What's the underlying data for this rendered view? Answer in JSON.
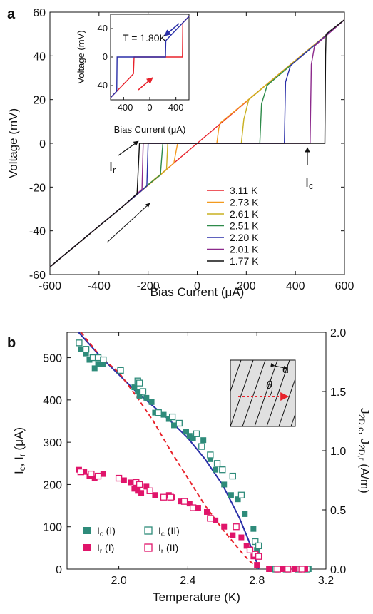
{
  "figure": {
    "panel_a_label": "a",
    "panel_b_label": "b"
  },
  "chart_data": [
    {
      "panel": "a",
      "type": "line",
      "xlabel": "Bias Current (μA)",
      "ylabel": "Voltage (mV)",
      "xlim": [
        -600,
        600
      ],
      "ylim": [
        -60,
        60
      ],
      "xticks": [
        -600,
        -400,
        -200,
        0,
        200,
        400,
        600
      ],
      "yticks": [
        -60,
        -40,
        -20,
        0,
        20,
        40,
        60
      ],
      "legend_position": "lower-right",
      "series": [
        {
          "name": "3.11 K",
          "color": "#e8222b",
          "x": [
            -600,
            -310,
            0,
            310,
            600
          ],
          "y": [
            -56.5,
            -29.5,
            0,
            29.5,
            56.5
          ]
        },
        {
          "name": "2.73 K",
          "color": "#f39a1f",
          "x": [
            -600,
            -310,
            -150,
            -95,
            -80,
            0,
            80,
            88,
            95,
            150,
            310,
            600
          ],
          "y": [
            -56.5,
            -29.5,
            -14.5,
            -9,
            0,
            0,
            0,
            7,
            9.5,
            14.5,
            29.5,
            56.5
          ]
        },
        {
          "name": "2.61 K",
          "color": "#c9b020",
          "x": [
            -600,
            -310,
            -170,
            -125,
            -120,
            0,
            180,
            190,
            210,
            600
          ],
          "y": [
            -56.5,
            -29.5,
            -16,
            -12,
            0,
            0,
            0,
            11,
            20,
            56.5
          ]
        },
        {
          "name": "2.51 K",
          "color": "#2e8b4a",
          "x": [
            -600,
            -310,
            -190,
            -150,
            -140,
            0,
            255,
            262,
            285,
            600
          ],
          "y": [
            -56.5,
            -29.5,
            -18,
            -14.5,
            0,
            0,
            0,
            18,
            26.5,
            56.5
          ]
        },
        {
          "name": "2.20 K",
          "color": "#2a2fa8",
          "x": [
            -600,
            -300,
            -230,
            -205,
            -200,
            0,
            355,
            360,
            380,
            600
          ],
          "y": [
            -56.5,
            -28.5,
            -22,
            -19.5,
            0,
            0,
            0,
            28,
            35.5,
            56.5
          ]
        },
        {
          "name": "2.01 K",
          "color": "#8c2a8c",
          "x": [
            -600,
            -300,
            -250,
            -225,
            -220,
            0,
            460,
            465,
            478,
            600
          ],
          "y": [
            -56.5,
            -28.5,
            -23.5,
            -21,
            0,
            0,
            0,
            36,
            44.5,
            56.5
          ]
        },
        {
          "name": "1.77 K",
          "color": "#111111",
          "x": [
            -600,
            -300,
            -265,
            -245,
            -235,
            0,
            520,
            523,
            525,
            600
          ],
          "y": [
            -56.5,
            -28.5,
            -25,
            -23,
            0,
            0,
            0,
            40,
            50,
            56.5
          ]
        }
      ],
      "annotations": {
        "ir": "I",
        "ir_sub": "r",
        "ic": "I",
        "ic_sub": "c"
      },
      "inset": {
        "xlabel": "Bias Current (μA)",
        "ylabel": "Voltage (mV)",
        "label": "T = 1.80K",
        "xlim": [
          -600,
          600
        ],
        "ylim": [
          -60,
          60
        ],
        "xticks": [
          -400,
          0,
          400
        ],
        "yticks": [
          -40,
          0,
          40
        ],
        "series": [
          {
            "name": "sweep up",
            "color": "#e8222b",
            "x": [
              -600,
              -300,
              -250,
              -240,
              0,
              500,
              505,
              600
            ],
            "y": [
              -57,
              -28.5,
              -23.5,
              0,
              0,
              0,
              48,
              57
            ]
          },
          {
            "name": "sweep down",
            "color": "#2a2fa8",
            "x": [
              600,
              300,
              245,
              240,
              0,
              -500,
              -505,
              -600
            ],
            "y": [
              57,
              28.5,
              23,
              0,
              0,
              0,
              -48,
              -57
            ]
          }
        ]
      }
    },
    {
      "panel": "b",
      "type": "scatter",
      "xlabel": "Temperature (K)",
      "ylabel": "I",
      "ylabel_sub": "c",
      "ylabel_mid": ", I",
      "ylabel_sub2": "r",
      "ylabel_unit": " (μA)",
      "y2label_a": "J",
      "y2label_sub_a": "2D,c",
      "y2label_b": ", J",
      "y2label_sub_b": "2D,r",
      "y2label_unit": " (A/m)",
      "xlim": [
        1.7,
        3.2
      ],
      "ylim": [
        0,
        560
      ],
      "y2lim": [
        0,
        2.0
      ],
      "xticks": [
        2.0,
        2.4,
        2.8,
        3.2
      ],
      "yticks": [
        0,
        100,
        200,
        300,
        400,
        500
      ],
      "y2ticks": [
        0.0,
        0.5,
        1.0,
        1.5,
        2.0
      ],
      "legend_position": "lower-left",
      "series": [
        {
          "name": "I",
          "sub": "c",
          "suffix": " (I)",
          "marker": "filled-square",
          "color": "#2e8b7a",
          "x": [
            1.78,
            1.81,
            1.83,
            1.86,
            1.88,
            1.91,
            2.09,
            2.11,
            2.12,
            2.16,
            2.19,
            2.21,
            2.26,
            2.29,
            2.32,
            2.39,
            2.41,
            2.43,
            2.49,
            2.53,
            2.56,
            2.61,
            2.65,
            2.69,
            2.73,
            2.78,
            2.8,
            2.88,
            2.93,
            2.98,
            3.02,
            3.06,
            3.1
          ],
          "y": [
            520,
            510,
            495,
            475,
            485,
            485,
            430,
            420,
            410,
            405,
            395,
            370,
            365,
            355,
            340,
            325,
            315,
            310,
            305,
            260,
            235,
            200,
            175,
            165,
            130,
            95,
            45,
            0,
            0,
            0,
            0,
            0,
            0
          ]
        },
        {
          "name": "I",
          "sub": "c",
          "suffix": " (II)",
          "marker": "open-square",
          "color": "#2e8b7a",
          "x": [
            1.77,
            1.81,
            1.85,
            1.88,
            1.91,
            2.01,
            2.11,
            2.12,
            2.14,
            2.23,
            2.31,
            2.35,
            2.45,
            2.48,
            2.53,
            2.57,
            2.6,
            2.66,
            2.71,
            2.79,
            2.81,
            2.91,
            2.97,
            3.04,
            3.09
          ],
          "y": [
            535,
            520,
            500,
            500,
            495,
            470,
            445,
            440,
            420,
            370,
            360,
            345,
            320,
            290,
            270,
            250,
            235,
            220,
            175,
            65,
            55,
            0,
            0,
            0,
            0
          ]
        },
        {
          "name": "I",
          "sub": "r",
          "suffix": " (I)",
          "marker": "filled-square",
          "color": "#e0146a",
          "x": [
            1.77,
            1.8,
            1.83,
            1.86,
            1.88,
            1.91,
            2.03,
            2.07,
            2.09,
            2.11,
            2.13,
            2.16,
            2.21,
            2.26,
            2.29,
            2.31,
            2.36,
            2.41,
            2.46,
            2.51,
            2.56,
            2.61,
            2.66,
            2.71,
            2.74,
            2.78,
            2.8,
            2.87,
            2.95,
            3.02,
            3.08
          ],
          "y": [
            235,
            230,
            220,
            215,
            220,
            225,
            210,
            205,
            190,
            185,
            180,
            195,
            175,
            170,
            175,
            170,
            160,
            155,
            145,
            135,
            115,
            100,
            80,
            75,
            55,
            30,
            10,
            0,
            0,
            0,
            0
          ]
        },
        {
          "name": "I",
          "sub": "r",
          "suffix": " (II)",
          "marker": "open-square",
          "color": "#e0146a",
          "x": [
            1.78,
            1.84,
            1.88,
            2.0,
            2.1,
            2.12,
            2.18,
            2.26,
            2.3,
            2.38,
            2.43,
            2.53,
            2.68,
            2.76,
            2.79,
            2.81,
            2.92,
            2.98,
            3.06
          ],
          "y": [
            230,
            225,
            220,
            215,
            205,
            200,
            185,
            170,
            170,
            160,
            145,
            120,
            100,
            45,
            35,
            30,
            0,
            0,
            0
          ]
        }
      ],
      "curves": [
        {
          "name": "fit-solid",
          "color": "#2a2fa8",
          "style": "solid",
          "x": [
            1.7,
            1.8,
            1.9,
            2.0,
            2.1,
            2.2,
            2.3,
            2.4,
            2.5,
            2.6,
            2.7,
            2.75,
            2.8,
            2.81
          ],
          "y": [
            590,
            545,
            500,
            460,
            420,
            385,
            350,
            310,
            260,
            200,
            120,
            70,
            15,
            0
          ]
        },
        {
          "name": "fit-dashed",
          "color": "#e8222b",
          "style": "dashed",
          "x": [
            1.78,
            1.85,
            1.9,
            2.0,
            2.1,
            2.2,
            2.3,
            2.4,
            2.5,
            2.6,
            2.7,
            2.75,
            2.8,
            2.82
          ],
          "y": [
            560,
            525,
            500,
            465,
            410,
            350,
            280,
            215,
            150,
            95,
            45,
            22,
            5,
            0
          ]
        }
      ],
      "inset": {
        "d_label": "d",
        "theta_label": "θ"
      }
    }
  ]
}
